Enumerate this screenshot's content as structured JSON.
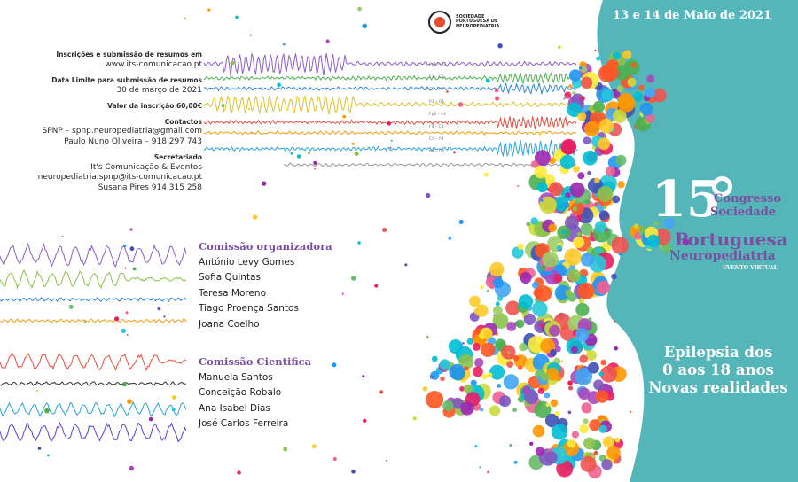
{
  "dates": "13 e 14 de Maio de 2021",
  "logo": {
    "name": "SOCIEDADE PORTUGUESA DE NEUROPEDIATRIA"
  },
  "info": [
    {
      "text": "Inscrições e submissão de resumos em",
      "bold": true
    },
    {
      "text": "www.its-comunicacao.pt",
      "bold": false
    },
    {
      "text": "Data Limite para submissão de resumos",
      "bold": true
    },
    {
      "text": "30 de março de 2021",
      "bold": false
    },
    {
      "text": "Valor da inscrição 60,00€",
      "bold": true
    },
    {
      "text": "Contactos",
      "bold": true
    },
    {
      "text": "SPNP – spnp.neuropediatria@gmail.com",
      "bold": false
    },
    {
      "text": "Paulo Nuno Oliveira – 918 297 743",
      "bold": false
    },
    {
      "text": "Secretariado",
      "bold": true
    },
    {
      "text": "It's Comunicação & Eventos",
      "bold": false
    },
    {
      "text": "neuropediatria.spnp@its-comunicacao.pt",
      "bold": false
    },
    {
      "text": "Susana Pires 914 315 258",
      "bold": false
    }
  ],
  "organizing": {
    "title": "Comissão organizadora",
    "members": [
      "António Levy Gomes",
      "Sofia Quintas",
      "Teresa Moreno",
      "Tiago Proença Santos",
      "Joana Coelho"
    ]
  },
  "scientific": {
    "title": "Comissão Cientifica",
    "members": [
      "Manuela Santos",
      "Conceição Robalo",
      "Ana Isabel Dias",
      "José Carlos Ferreira"
    ]
  },
  "congress": {
    "number": "15",
    "line1": "Congresso",
    "line2": "Sociedade",
    "line3": "Portuguesa",
    "line4": "Neuropediatria",
    "line5": "EVENTO VIRTUAL"
  },
  "theme": [
    "Epilepsia dos",
    "0 aos 18 anos",
    "Novas realidades"
  ],
  "eeg_labels": [
    "Fp1 – F3",
    "F3 – C3",
    "C3 – P3",
    "P3 – O1",
    "Fp2 – F4",
    "F4 – C4",
    "C4 – P4",
    "P4 – O2"
  ],
  "colors": {
    "teal": "#55b6b9",
    "purple": "#7b4fa0"
  }
}
